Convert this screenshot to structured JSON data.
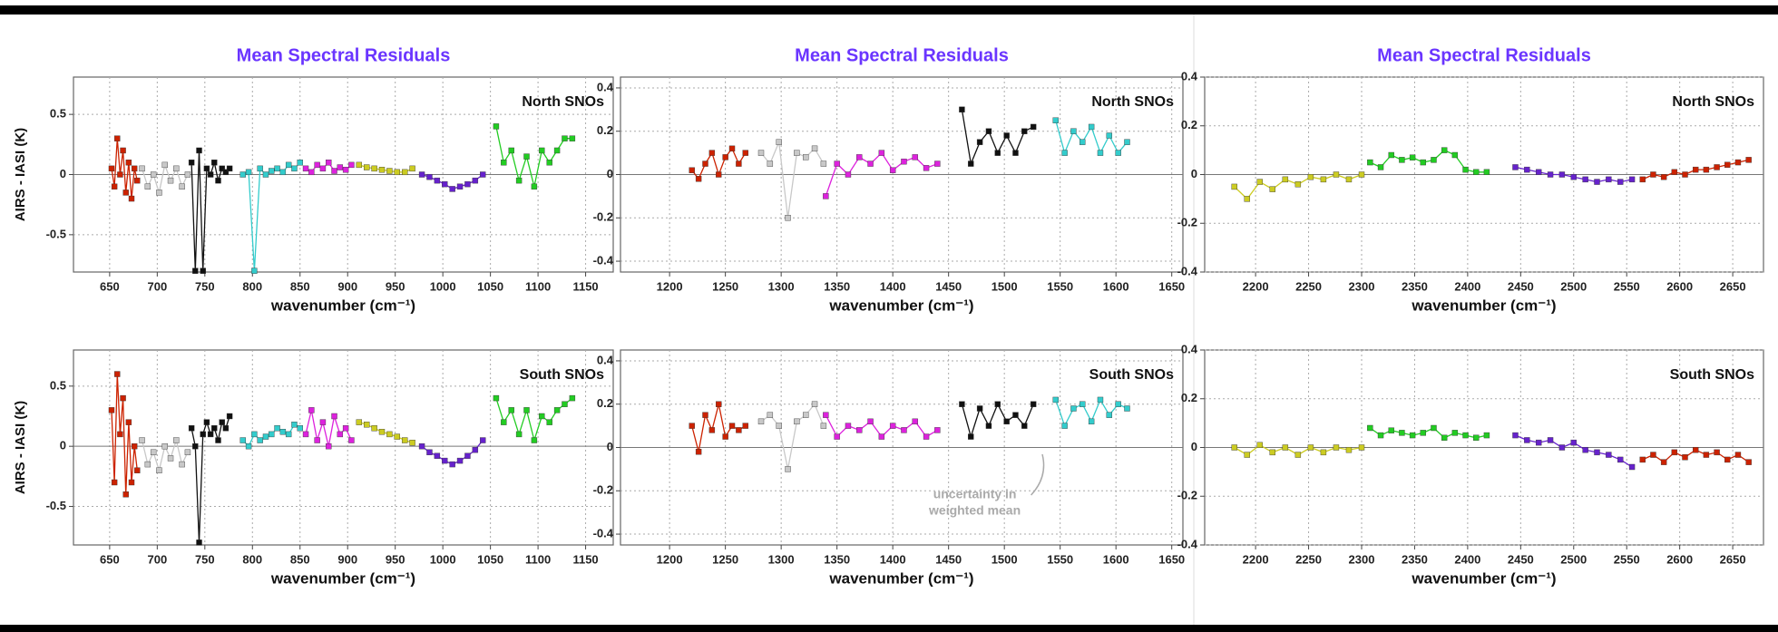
{
  "chart_data": [
    {
      "type": "line",
      "title": "Mean Spectral Residuals",
      "label": "North SNOs",
      "xlabel": "wavenumber (cm⁻¹)",
      "ylabel": "AIRS - IASI (K)",
      "xlim": [
        612,
        1179
      ],
      "ylim": [
        -0.81,
        0.81
      ],
      "xticks": [
        650,
        700,
        750,
        800,
        850,
        900,
        950,
        1000,
        1050,
        1100,
        1150
      ],
      "yticks": [
        -0.5,
        0,
        0.5
      ],
      "grid": true,
      "series": [
        {
          "color": "#cc2200",
          "x": [
            652,
            655,
            658,
            661,
            664,
            667,
            670,
            673,
            676,
            679
          ],
          "values": [
            0.05,
            -0.1,
            0.3,
            0.0,
            0.2,
            -0.15,
            0.1,
            -0.2,
            0.05,
            -0.05
          ]
        },
        {
          "color": "#c8c8c8",
          "x": [
            684,
            690,
            696,
            702,
            708,
            714,
            720,
            726,
            732
          ],
          "values": [
            0.05,
            -0.1,
            0.0,
            -0.15,
            0.08,
            -0.05,
            0.05,
            -0.1,
            0.0
          ]
        },
        {
          "color": "#111111",
          "x": [
            736,
            740,
            744,
            748,
            752,
            756,
            760,
            764,
            768,
            772,
            776
          ],
          "values": [
            0.1,
            -0.8,
            0.2,
            -0.8,
            0.05,
            0.0,
            0.1,
            -0.05,
            0.05,
            0.02,
            0.05
          ]
        },
        {
          "color": "#33cccc",
          "x": [
            790,
            796,
            802,
            808,
            814,
            820,
            826,
            832,
            838,
            844,
            850
          ],
          "values": [
            0.0,
            0.02,
            -0.8,
            0.05,
            0.0,
            0.03,
            0.05,
            0.02,
            0.08,
            0.05,
            0.1
          ]
        },
        {
          "color": "#dd22dd",
          "x": [
            856,
            862,
            868,
            874,
            880,
            886,
            892,
            898,
            904
          ],
          "values": [
            0.05,
            0.02,
            0.08,
            0.05,
            0.1,
            0.03,
            0.06,
            0.04,
            0.08
          ]
        },
        {
          "color": "#cccc22",
          "x": [
            912,
            920,
            928,
            936,
            944,
            952,
            960,
            968
          ],
          "values": [
            0.08,
            0.06,
            0.05,
            0.04,
            0.03,
            0.02,
            0.02,
            0.05
          ]
        },
        {
          "color": "#6622cc",
          "x": [
            978,
            986,
            994,
            1002,
            1010,
            1018,
            1026,
            1034,
            1042
          ],
          "values": [
            0.0,
            -0.02,
            -0.05,
            -0.08,
            -0.12,
            -0.1,
            -0.08,
            -0.05,
            0.0
          ]
        },
        {
          "color": "#22cc22",
          "x": [
            1056,
            1064,
            1072,
            1080,
            1088,
            1096,
            1104,
            1112,
            1120,
            1128,
            1136
          ],
          "values": [
            0.4,
            0.1,
            0.2,
            -0.05,
            0.15,
            -0.1,
            0.2,
            0.1,
            0.2,
            0.3,
            0.3
          ]
        }
      ]
    },
    {
      "type": "line",
      "title": "Mean Spectral Residuals",
      "label": "North SNOs",
      "xlabel": "wavenumber (cm⁻¹)",
      "xlim": [
        1156,
        1660
      ],
      "ylim": [
        -0.45,
        0.45
      ],
      "xticks": [
        1200,
        1250,
        1300,
        1350,
        1400,
        1450,
        1500,
        1550,
        1600,
        1650
      ],
      "yticks": [
        -0.4,
        -0.2,
        0,
        0.2,
        0.4
      ],
      "grid": true,
      "series": [
        {
          "color": "#cc2200",
          "x": [
            1220,
            1226,
            1232,
            1238,
            1244,
            1250,
            1256,
            1262,
            1268
          ],
          "values": [
            0.02,
            -0.02,
            0.05,
            0.1,
            0.0,
            0.08,
            0.12,
            0.05,
            0.1
          ]
        },
        {
          "color": "#c8c8c8",
          "x": [
            1282,
            1290,
            1298,
            1306,
            1314,
            1322,
            1330,
            1338
          ],
          "values": [
            0.1,
            0.05,
            0.15,
            -0.2,
            0.1,
            0.08,
            0.12,
            0.05
          ]
        },
        {
          "color": "#dd22dd",
          "x": [
            1340,
            1350,
            1360,
            1370,
            1380,
            1390,
            1400,
            1410,
            1420,
            1430,
            1440
          ],
          "values": [
            -0.1,
            0.05,
            0.0,
            0.08,
            0.05,
            0.1,
            0.02,
            0.06,
            0.08,
            0.03,
            0.05
          ]
        },
        {
          "color": "#111111",
          "x": [
            1462,
            1470,
            1478,
            1486,
            1494,
            1502,
            1510,
            1518,
            1526
          ],
          "values": [
            0.3,
            0.05,
            0.15,
            0.2,
            0.1,
            0.18,
            0.1,
            0.2,
            0.22
          ]
        },
        {
          "color": "#33cccc",
          "x": [
            1546,
            1554,
            1562,
            1570,
            1578,
            1586,
            1594,
            1602,
            1610
          ],
          "values": [
            0.25,
            0.1,
            0.2,
            0.15,
            0.22,
            0.1,
            0.18,
            0.1,
            0.15
          ]
        }
      ]
    },
    {
      "type": "line",
      "title": "Mean Spectral Residuals",
      "label": "North SNOs",
      "xlabel": "wavenumber (cm⁻¹)",
      "xlim": [
        2152,
        2679
      ],
      "ylim": [
        -0.4,
        0.4
      ],
      "xticks": [
        2200,
        2250,
        2300,
        2350,
        2400,
        2450,
        2500,
        2550,
        2600,
        2650
      ],
      "yticks": [
        -0.4,
        -0.2,
        0,
        0.2,
        0.4
      ],
      "grid": true,
      "series": [
        {
          "color": "#cccc22",
          "x": [
            2180,
            2192,
            2204,
            2216,
            2228,
            2240,
            2252,
            2264,
            2276,
            2288,
            2300
          ],
          "values": [
            -0.05,
            -0.1,
            -0.03,
            -0.06,
            -0.02,
            -0.04,
            -0.01,
            -0.02,
            0.0,
            -0.02,
            0.0
          ]
        },
        {
          "color": "#22cc22",
          "x": [
            2308,
            2318,
            2328,
            2338,
            2348,
            2358,
            2368,
            2378,
            2388,
            2398,
            2408,
            2418
          ],
          "values": [
            0.05,
            0.03,
            0.08,
            0.06,
            0.07,
            0.05,
            0.06,
            0.1,
            0.08,
            0.02,
            0.01,
            0.01
          ]
        },
        {
          "color": "#6622cc",
          "x": [
            2445,
            2456,
            2467,
            2478,
            2489,
            2500,
            2511,
            2522,
            2533,
            2544,
            2555
          ],
          "values": [
            0.03,
            0.02,
            0.01,
            0.0,
            0.0,
            -0.01,
            -0.02,
            -0.03,
            -0.02,
            -0.03,
            -0.02
          ]
        },
        {
          "color": "#cc2200",
          "x": [
            2565,
            2575,
            2585,
            2595,
            2605,
            2615,
            2625,
            2635,
            2645,
            2655,
            2665
          ],
          "values": [
            -0.02,
            0.0,
            -0.01,
            0.01,
            0.0,
            0.02,
            0.02,
            0.03,
            0.04,
            0.05,
            0.06
          ]
        }
      ]
    },
    {
      "type": "line",
      "label": "South SNOs",
      "xlabel": "wavenumber (cm⁻¹)",
      "ylabel": "AIRS - IASI (K)",
      "xlim": [
        612,
        1179
      ],
      "ylim": [
        -0.82,
        0.8
      ],
      "xticks": [
        650,
        700,
        750,
        800,
        850,
        900,
        950,
        1000,
        1050,
        1100,
        1150
      ],
      "yticks": [
        -0.5,
        0,
        0.5
      ],
      "grid": true,
      "series": [
        {
          "color": "#cc2200",
          "x": [
            652,
            655,
            658,
            661,
            664,
            667,
            670,
            673,
            676,
            679
          ],
          "values": [
            0.3,
            -0.3,
            0.6,
            0.1,
            0.4,
            -0.4,
            0.2,
            -0.3,
            0.0,
            -0.2
          ]
        },
        {
          "color": "#c8c8c8",
          "x": [
            684,
            690,
            696,
            702,
            708,
            714,
            720,
            726,
            732
          ],
          "values": [
            0.05,
            -0.15,
            -0.05,
            -0.2,
            0.0,
            -0.1,
            0.05,
            -0.15,
            -0.05
          ]
        },
        {
          "color": "#111111",
          "x": [
            736,
            740,
            744,
            748,
            752,
            756,
            760,
            764,
            768,
            772,
            776
          ],
          "values": [
            0.15,
            0.0,
            -0.8,
            0.1,
            0.2,
            0.1,
            0.15,
            0.05,
            0.2,
            0.15,
            0.25
          ]
        },
        {
          "color": "#33cccc",
          "x": [
            790,
            796,
            802,
            808,
            814,
            820,
            826,
            832,
            838,
            844,
            850
          ],
          "values": [
            0.05,
            0.0,
            0.1,
            0.05,
            0.08,
            0.1,
            0.15,
            0.12,
            0.1,
            0.18,
            0.15
          ]
        },
        {
          "color": "#dd22dd",
          "x": [
            856,
            862,
            868,
            874,
            880,
            886,
            892,
            898,
            904
          ],
          "values": [
            0.1,
            0.3,
            0.05,
            0.2,
            0.0,
            0.25,
            0.1,
            0.15,
            0.05
          ]
        },
        {
          "color": "#cccc22",
          "x": [
            912,
            920,
            928,
            936,
            944,
            952,
            960,
            968
          ],
          "values": [
            0.2,
            0.18,
            0.15,
            0.12,
            0.1,
            0.08,
            0.05,
            0.03
          ]
        },
        {
          "color": "#6622cc",
          "x": [
            978,
            986,
            994,
            1002,
            1010,
            1018,
            1026,
            1034,
            1042
          ],
          "values": [
            0.0,
            -0.05,
            -0.08,
            -0.12,
            -0.15,
            -0.12,
            -0.08,
            -0.03,
            0.05
          ]
        },
        {
          "color": "#22cc22",
          "x": [
            1056,
            1064,
            1072,
            1080,
            1088,
            1096,
            1104,
            1112,
            1120,
            1128,
            1136
          ],
          "values": [
            0.4,
            0.2,
            0.3,
            0.1,
            0.3,
            0.05,
            0.25,
            0.2,
            0.3,
            0.35,
            0.4
          ]
        }
      ]
    },
    {
      "type": "line",
      "label": "South SNOs",
      "xlabel": "wavenumber (cm⁻¹)",
      "note_lines": [
        "uncertainty in",
        "weighted mean"
      ],
      "xlim": [
        1156,
        1660
      ],
      "ylim": [
        -0.45,
        0.45
      ],
      "xticks": [
        1200,
        1250,
        1300,
        1350,
        1400,
        1450,
        1500,
        1550,
        1600,
        1650
      ],
      "yticks": [
        -0.4,
        -0.2,
        0,
        0.2,
        0.4
      ],
      "grid": true,
      "series": [
        {
          "color": "#cc2200",
          "x": [
            1220,
            1226,
            1232,
            1238,
            1244,
            1250,
            1256,
            1262,
            1268
          ],
          "values": [
            0.1,
            -0.02,
            0.15,
            0.08,
            0.2,
            0.05,
            0.1,
            0.08,
            0.1
          ]
        },
        {
          "color": "#c8c8c8",
          "x": [
            1282,
            1290,
            1298,
            1306,
            1314,
            1322,
            1330,
            1338
          ],
          "values": [
            0.12,
            0.15,
            0.1,
            -0.1,
            0.12,
            0.15,
            0.2,
            0.1
          ]
        },
        {
          "color": "#dd22dd",
          "x": [
            1340,
            1350,
            1360,
            1370,
            1380,
            1390,
            1400,
            1410,
            1420,
            1430,
            1440
          ],
          "values": [
            0.15,
            0.05,
            0.1,
            0.08,
            0.12,
            0.05,
            0.1,
            0.08,
            0.12,
            0.05,
            0.08
          ]
        },
        {
          "color": "#111111",
          "x": [
            1462,
            1470,
            1478,
            1486,
            1494,
            1502,
            1510,
            1518,
            1526
          ],
          "values": [
            0.2,
            0.05,
            0.18,
            0.1,
            0.2,
            0.12,
            0.15,
            0.1,
            0.2
          ]
        },
        {
          "color": "#33cccc",
          "x": [
            1546,
            1554,
            1562,
            1570,
            1578,
            1586,
            1594,
            1602,
            1610
          ],
          "values": [
            0.22,
            0.1,
            0.18,
            0.2,
            0.12,
            0.22,
            0.15,
            0.2,
            0.18
          ]
        }
      ]
    },
    {
      "type": "line",
      "label": "South SNOs",
      "xlabel": "wavenumber (cm⁻¹)",
      "xlim": [
        2152,
        2679
      ],
      "ylim": [
        -0.4,
        0.4
      ],
      "xticks": [
        2200,
        2250,
        2300,
        2350,
        2400,
        2450,
        2500,
        2550,
        2600,
        2650
      ],
      "yticks": [
        -0.4,
        -0.2,
        0,
        0.2,
        0.4
      ],
      "grid": true,
      "series": [
        {
          "color": "#cccc22",
          "x": [
            2180,
            2192,
            2204,
            2216,
            2228,
            2240,
            2252,
            2264,
            2276,
            2288,
            2300
          ],
          "values": [
            0.0,
            -0.03,
            0.01,
            -0.02,
            0.0,
            -0.03,
            0.0,
            -0.02,
            0.0,
            -0.01,
            0.0
          ]
        },
        {
          "color": "#22cc22",
          "x": [
            2308,
            2318,
            2328,
            2338,
            2348,
            2358,
            2368,
            2378,
            2388,
            2398,
            2408,
            2418
          ],
          "values": [
            0.08,
            0.05,
            0.07,
            0.06,
            0.05,
            0.06,
            0.08,
            0.04,
            0.06,
            0.05,
            0.04,
            0.05
          ]
        },
        {
          "color": "#6622cc",
          "x": [
            2445,
            2456,
            2467,
            2478,
            2489,
            2500,
            2511,
            2522,
            2533,
            2544,
            2555
          ],
          "values": [
            0.05,
            0.03,
            0.02,
            0.03,
            0.0,
            0.02,
            -0.01,
            -0.02,
            -0.03,
            -0.05,
            -0.08
          ]
        },
        {
          "color": "#cc2200",
          "x": [
            2565,
            2575,
            2585,
            2595,
            2605,
            2615,
            2625,
            2635,
            2645,
            2655,
            2665
          ],
          "values": [
            -0.05,
            -0.03,
            -0.06,
            -0.02,
            -0.04,
            -0.01,
            -0.03,
            -0.02,
            -0.05,
            -0.03,
            -0.06
          ]
        }
      ]
    }
  ]
}
